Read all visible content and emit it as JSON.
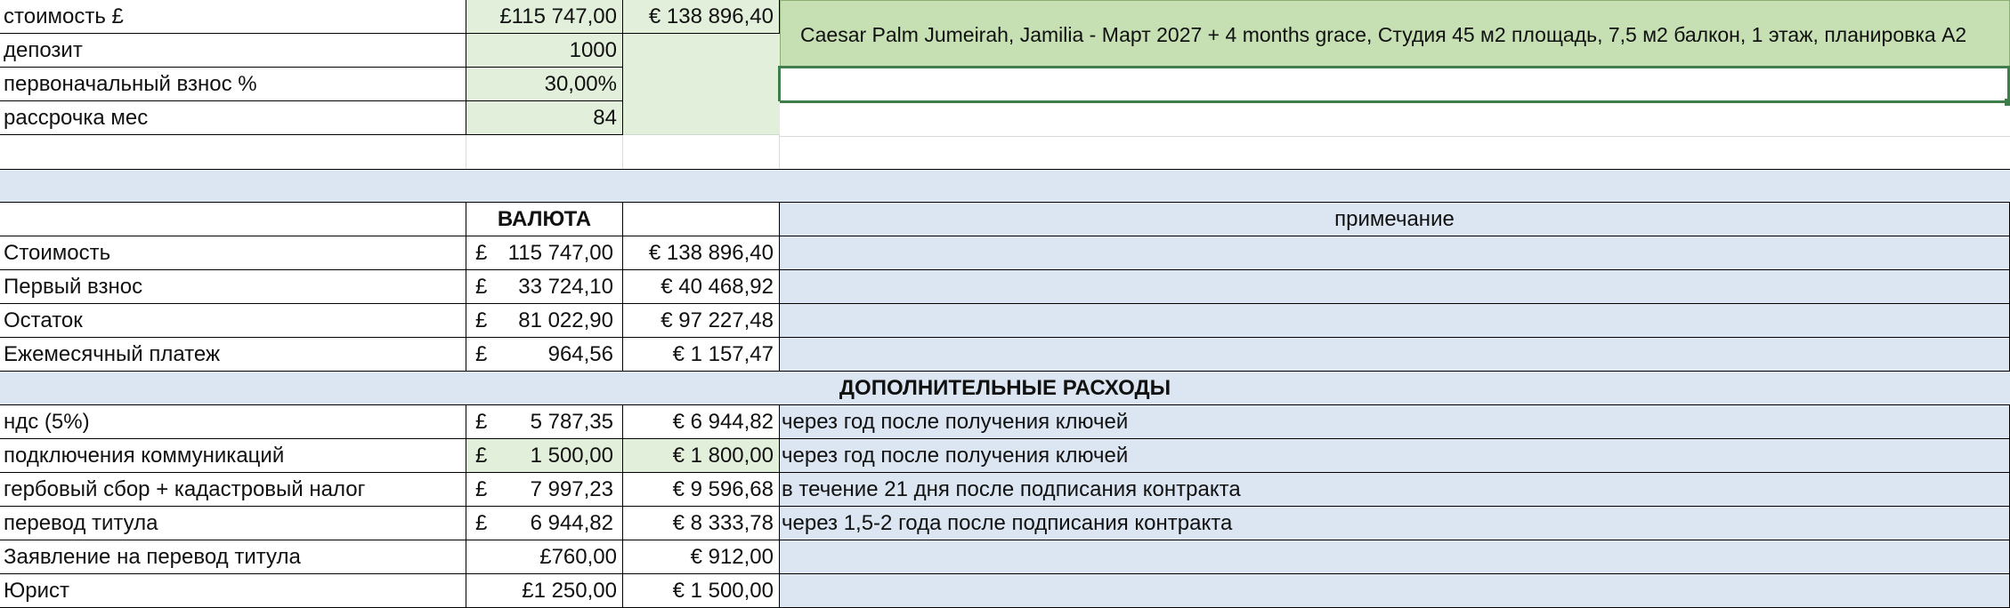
{
  "input": {
    "cost_label": "стоимость £",
    "cost_gbp": "£115 747,00",
    "cost_eur": "€ 138 896,40",
    "deposit_label": "депозит",
    "deposit_value": "1000",
    "down_label": "первоначальный взнос %",
    "down_value": "30,00%",
    "term_label": "рассрочка мес",
    "term_value": "84",
    "description": "Caesar Palm Jumeirah, Jamilia - Март 2027 + 4 months grace, Студия 45 м2 площадь, 7,5 м2 балкон, 1 этаж, планировка A2"
  },
  "summary": {
    "currency_header": "ВАЛЮТА",
    "note_header": "примечание",
    "rows": [
      {
        "label": "Стоимость",
        "gbp_sym": "£",
        "gbp": "115 747,00",
        "eur": "€ 138 896,40"
      },
      {
        "label": "Первый взнос",
        "gbp_sym": "£",
        "gbp": "33 724,10",
        "eur": "€ 40 468,92"
      },
      {
        "label": "Остаток",
        "gbp_sym": "£",
        "gbp": "81 022,90",
        "eur": "€ 97 227,48"
      },
      {
        "label": "Ежемесячный платеж",
        "gbp_sym": "£",
        "gbp": "964,56",
        "eur": "€ 1 157,47"
      }
    ]
  },
  "extra": {
    "header": "ДОПОЛНИТЕЛЬНЫЕ РАСХОДЫ",
    "rows": [
      {
        "label": "ндс (5%)",
        "gbp_sym": "£",
        "gbp": "5 787,35",
        "eur": "€ 6 944,82",
        "note": "через год после получения ключей"
      },
      {
        "label": "подключения коммуникаций",
        "gbp_sym": "£",
        "gbp": "1 500,00",
        "eur": "€ 1 800,00",
        "note": "через год после получения ключей"
      },
      {
        "label": "гербовый сбор + кадастровый налог",
        "gbp_sym": "£",
        "gbp": "7 997,23",
        "eur": "€ 9 596,68",
        "note": "в течение 21 дня после подписания контракта"
      },
      {
        "label": "перевод титула",
        "gbp_sym": "£",
        "gbp": "6 944,82",
        "eur": "€ 8 333,78",
        "note": "через 1,5-2 года после подписания контракта"
      },
      {
        "label": "Заявление на перевод титула",
        "gbp_sym": "",
        "gbp": "£760,00",
        "eur": "€ 912,00",
        "note": ""
      },
      {
        "label": "Юрист",
        "gbp_sym": "",
        "gbp": "£1 250,00",
        "eur": "€ 1 500,00",
        "note": ""
      }
    ]
  },
  "colors": {
    "input_green": "#e2efda",
    "merged_green": "#c6e0b4",
    "note_blue": "#dce6f2",
    "selection": "#3f7d4a"
  }
}
